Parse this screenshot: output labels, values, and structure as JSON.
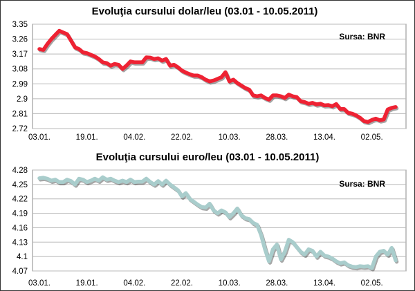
{
  "chart_data": [
    {
      "type": "line",
      "title": "Evoluţia cursului dolar/leu (03.01 - 10.05.2011)",
      "source": "Sursa: BNR",
      "xlabel": "",
      "ylabel": "",
      "x_tick_labels": [
        "03.01.",
        "19.01.",
        "04.02.",
        "22.02.",
        "10.03.",
        "28.03.",
        "13.04.",
        "02.05."
      ],
      "y_ticks": [
        3.35,
        3.26,
        3.17,
        3.08,
        2.99,
        2.9,
        2.81,
        2.72
      ],
      "ylim": [
        2.72,
        3.35
      ],
      "grid": "horizontal",
      "line_color": "#ee2233",
      "series": [
        {
          "x": [
            "03.01.",
            "04.01.",
            "05.01.",
            "06.01.",
            "07.01.",
            "10.01.",
            "11.01.",
            "12.01.",
            "13.01.",
            "14.01.",
            "17.01.",
            "18.01.",
            "19.01.",
            "20.01.",
            "21.01.",
            "24.01.",
            "25.01.",
            "26.01.",
            "27.01.",
            "28.01.",
            "31.01.",
            "01.02.",
            "02.02.",
            "03.02.",
            "04.02.",
            "07.02.",
            "08.02.",
            "09.02.",
            "10.02.",
            "11.02.",
            "14.02.",
            "15.02.",
            "16.02.",
            "17.02.",
            "18.02.",
            "21.02.",
            "22.02.",
            "23.02.",
            "24.02.",
            "25.02.",
            "28.02.",
            "01.03.",
            "02.03.",
            "03.03.",
            "04.03.",
            "07.03.",
            "08.03.",
            "09.03.",
            "10.03.",
            "11.03.",
            "14.03.",
            "15.03.",
            "16.03.",
            "17.03.",
            "18.03.",
            "21.03.",
            "22.03.",
            "23.03.",
            "24.03.",
            "25.03.",
            "28.03.",
            "29.03.",
            "30.03.",
            "31.03.",
            "01.04.",
            "04.04.",
            "05.04.",
            "06.04.",
            "07.04.",
            "08.04.",
            "11.04.",
            "12.04.",
            "13.04.",
            "14.04.",
            "15.04.",
            "18.04.",
            "19.04.",
            "20.04.",
            "21.04.",
            "22.04.",
            "26.04.",
            "27.04.",
            "28.04.",
            "29.04.",
            "02.05.",
            "03.05.",
            "04.05.",
            "05.05.",
            "06.05.",
            "09.05.",
            "10.05."
          ],
          "values": [
            3.2,
            3.195,
            3.23,
            3.26,
            3.285,
            3.31,
            3.3,
            3.29,
            3.25,
            3.21,
            3.2,
            3.18,
            3.175,
            3.165,
            3.155,
            3.14,
            3.12,
            3.115,
            3.1,
            3.11,
            3.105,
            3.08,
            3.1,
            3.125,
            3.12,
            3.12,
            3.12,
            3.15,
            3.148,
            3.14,
            3.144,
            3.13,
            3.14,
            3.1,
            3.105,
            3.09,
            3.07,
            3.058,
            3.048,
            3.04,
            3.04,
            3.03,
            3.015,
            3.005,
            3.01,
            3.02,
            3.03,
            3.06,
            3.005,
            3.015,
            2.995,
            2.98,
            2.965,
            2.955,
            2.92,
            2.915,
            2.92,
            2.905,
            2.895,
            2.92,
            2.92,
            2.915,
            2.905,
            2.925,
            2.915,
            2.91,
            2.885,
            2.88,
            2.87,
            2.875,
            2.866,
            2.87,
            2.86,
            2.862,
            2.855,
            2.868,
            2.838,
            2.838,
            2.815,
            2.81,
            2.8,
            2.785,
            2.765,
            2.76,
            2.772,
            2.78,
            2.77,
            2.775,
            2.835,
            2.845,
            2.85
          ]
        }
      ]
    },
    {
      "type": "line",
      "title": "Evoluţia cursului euro/leu (03.01 - 10.05.2011)",
      "source": "Sursa: BNR",
      "xlabel": "",
      "ylabel": "",
      "x_tick_labels": [
        "03.01.",
        "19.01.",
        "04.02.",
        "22.02.",
        "10.03.",
        "28.03.",
        "13.04.",
        "02.05."
      ],
      "y_ticks": [
        4.28,
        4.25,
        4.22,
        4.19,
        4.16,
        4.13,
        4.1,
        4.07
      ],
      "ylim": [
        4.07,
        4.28
      ],
      "grid": "horizontal",
      "line_color": "#a9cdcc",
      "series": [
        {
          "x": [
            "03.01.",
            "04.01.",
            "05.01.",
            "06.01.",
            "07.01.",
            "10.01.",
            "11.01.",
            "12.01.",
            "13.01.",
            "14.01.",
            "17.01.",
            "18.01.",
            "19.01.",
            "20.01.",
            "21.01.",
            "24.01.",
            "25.01.",
            "26.01.",
            "27.01.",
            "28.01.",
            "31.01.",
            "01.02.",
            "02.02.",
            "03.02.",
            "04.02.",
            "07.02.",
            "08.02.",
            "09.02.",
            "10.02.",
            "11.02.",
            "14.02.",
            "15.02.",
            "16.02.",
            "17.02.",
            "18.02.",
            "21.02.",
            "22.02.",
            "23.02.",
            "24.02.",
            "25.02.",
            "28.02.",
            "01.03.",
            "02.03.",
            "03.03.",
            "04.03.",
            "07.03.",
            "08.03.",
            "09.03.",
            "10.03.",
            "11.03.",
            "14.03.",
            "15.03.",
            "16.03.",
            "17.03.",
            "18.03.",
            "21.03.",
            "22.03.",
            "23.03.",
            "24.03.",
            "25.03.",
            "28.03.",
            "29.03.",
            "30.03.",
            "31.03.",
            "01.04.",
            "04.04.",
            "05.04.",
            "06.04.",
            "07.04.",
            "08.04.",
            "11.04.",
            "12.04.",
            "13.04.",
            "14.04.",
            "15.04.",
            "18.04.",
            "19.04.",
            "20.04.",
            "21.04.",
            "22.04.",
            "26.04.",
            "27.04.",
            "28.04.",
            "29.04.",
            "02.05.",
            "03.05.",
            "04.05.",
            "05.05.",
            "06.05.",
            "09.05.",
            "10.05."
          ],
          "values": [
            4.263,
            4.264,
            4.262,
            4.258,
            4.26,
            4.255,
            4.255,
            4.26,
            4.257,
            4.25,
            4.262,
            4.26,
            4.255,
            4.258,
            4.262,
            4.258,
            4.265,
            4.26,
            4.262,
            4.258,
            4.255,
            4.258,
            4.255,
            4.26,
            4.255,
            4.256,
            4.256,
            4.262,
            4.255,
            4.25,
            4.257,
            4.25,
            4.258,
            4.25,
            4.244,
            4.238,
            4.225,
            4.232,
            4.22,
            4.214,
            4.208,
            4.203,
            4.202,
            4.21,
            4.196,
            4.19,
            4.196,
            4.192,
            4.182,
            4.19,
            4.2,
            4.186,
            4.18,
            4.178,
            4.17,
            4.166,
            4.145,
            4.115,
            4.09,
            4.115,
            4.125,
            4.094,
            4.11,
            4.135,
            4.13,
            4.12,
            4.11,
            4.104,
            4.115,
            4.112,
            4.1,
            4.11,
            4.102,
            4.1,
            4.096,
            4.09,
            4.086,
            4.088,
            4.082,
            4.079,
            4.078,
            4.08,
            4.079,
            4.08,
            4.076,
            4.1,
            4.11,
            4.112,
            4.104,
            4.118,
            4.092
          ]
        }
      ]
    }
  ]
}
